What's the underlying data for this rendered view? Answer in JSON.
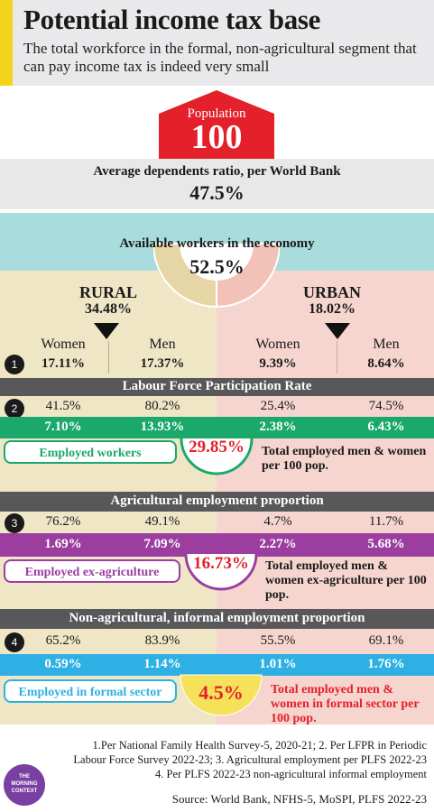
{
  "header": {
    "title": "Potential income tax base",
    "subtitle": "The total workforce in the formal, non-agricultural segment that can pay income tax is indeed very small"
  },
  "population": {
    "label": "Population",
    "value": "100"
  },
  "dependents": {
    "label": "Average dependents ratio, per World Bank",
    "value": "47.5%"
  },
  "available": {
    "label": "Available workers in the economy",
    "value": "52.5%"
  },
  "rural": {
    "label": "RURAL",
    "value": "34.48%"
  },
  "urban": {
    "label": "URBAN",
    "value": "18.02%"
  },
  "columns": {
    "women": "Women",
    "men": "Men"
  },
  "row1": {
    "step": "1",
    "rw": "17.11%",
    "rm": "17.37%",
    "uw": "9.39%",
    "um": "8.64%"
  },
  "lfpr": {
    "title": "Labour Force Participation Rate",
    "step": "2",
    "rw": "41.5%",
    "rm": "80.2%",
    "uw": "25.4%",
    "um": "74.5%"
  },
  "employed": {
    "rw": "7.10%",
    "rm": "13.93%",
    "uw": "2.38%",
    "um": "6.43%",
    "tag": "Employed workers",
    "total": "29.85%",
    "note": "Total employed men & women per 100 pop."
  },
  "agri": {
    "title": "Agricultural employment proportion",
    "step": "3",
    "rw": "76.2%",
    "rm": "49.1%",
    "uw": "4.7%",
    "um": "11.7%"
  },
  "exagri": {
    "rw": "1.69%",
    "rm": "7.09%",
    "uw": "2.27%",
    "um": "5.68%",
    "tag": "Employed ex-agriculture",
    "total": "16.73%",
    "note": "Total employed men & women ex-agriculture per 100 pop."
  },
  "informal": {
    "title": "Non-agricultural, informal employment proportion",
    "step": "4",
    "rw": "65.2%",
    "rm": "83.9%",
    "uw": "55.5%",
    "um": "69.1%"
  },
  "formal": {
    "rw": "0.59%",
    "rm": "1.14%",
    "uw": "1.01%",
    "um": "1.76%",
    "tag": "Employed in formal sector",
    "total": "4.5%",
    "note": "Total employed men & women in formal sector per 100 pop."
  },
  "footnotes": {
    "line1": "1.Per National Family Health Survey-5, 2020-21; 2. Per LFPR in Periodic",
    "line2": "Labour Force Survey 2022-23; 3. Agricultural employment per PLFS 2022-23",
    "line3": "4. Per PLFS 2022-23 non-agricultural informal employment"
  },
  "logo": {
    "l1": "THE",
    "l2": "MORNING",
    "l3": "CONTEXT"
  },
  "source": "Source: World Bank, NFHS-5, MoSPI, PLFS 2022-23",
  "colors": {
    "rural": "#efe6c6",
    "urban": "#f6d5cf",
    "teal": "#a9dcdc",
    "grey_bar": "#58585a",
    "green": "#1aa86b",
    "purple": "#9b3ea0",
    "blue": "#2fb0e4",
    "red": "#e4202b",
    "yellow": "#f6e15a"
  }
}
